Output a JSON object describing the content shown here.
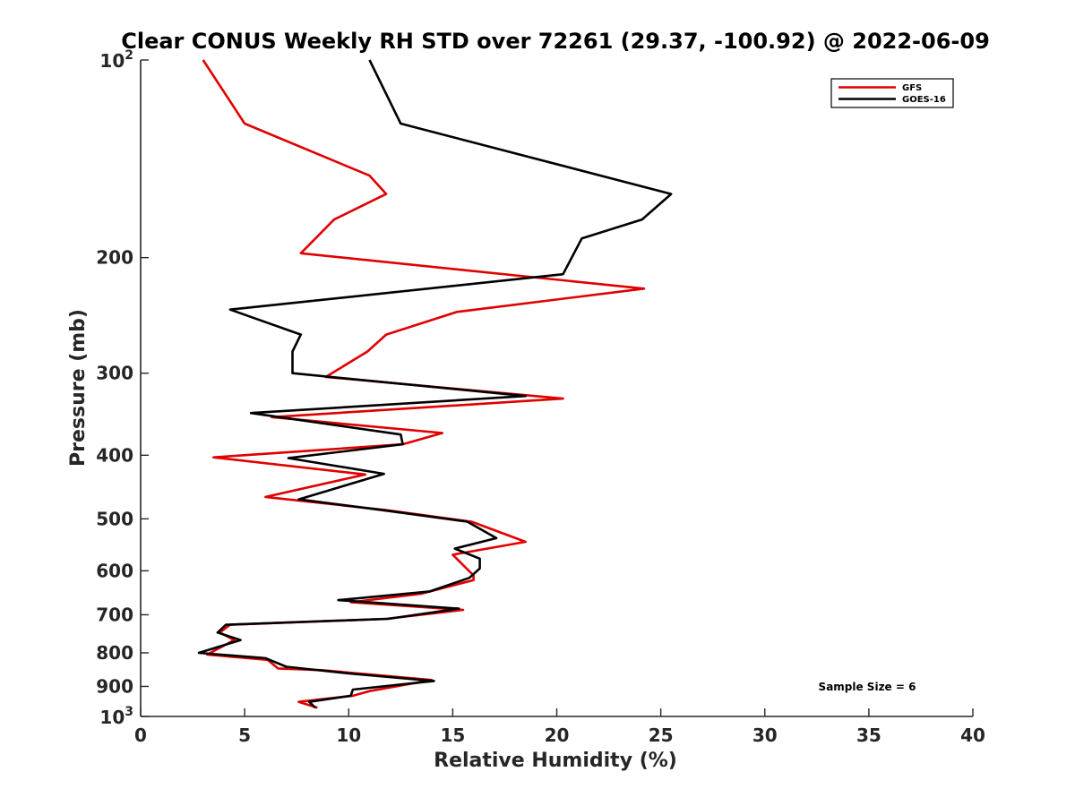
{
  "chart_data": {
    "type": "line",
    "title": "Clear CONUS Weekly RH STD over 72261 (29.37, -100.92) @ 2022-06-09",
    "xlabel": "Relative Humidity (%)",
    "ylabel": "Pressure (mb)",
    "xlim": [
      0,
      40
    ],
    "ylim": [
      100,
      1000
    ],
    "y_scale": "log",
    "y_reversed": true,
    "x_ticks": [
      "0",
      "5",
      "10",
      "15",
      "20",
      "25",
      "30",
      "35",
      "40"
    ],
    "y_ticks": [
      {
        "value": 100,
        "base": "10",
        "exp": "2"
      },
      {
        "value": 200,
        "label": "200"
      },
      {
        "value": 300,
        "label": "300"
      },
      {
        "value": 400,
        "label": "400"
      },
      {
        "value": 500,
        "label": "500"
      },
      {
        "value": 600,
        "label": "600"
      },
      {
        "value": 700,
        "label": "700"
      },
      {
        "value": 800,
        "label": "800"
      },
      {
        "value": 900,
        "label": "900"
      },
      {
        "value": 1000,
        "base": "10",
        "exp": "3"
      }
    ],
    "grid": false,
    "legend_position": "top-right",
    "annotation": "Sample Size = 6",
    "series": [
      {
        "name": "GFS",
        "color": "#e00000",
        "points": [
          [
            3.0,
            100
          ],
          [
            5.0,
            125
          ],
          [
            11.0,
            150
          ],
          [
            11.8,
            160
          ],
          [
            9.3,
            175
          ],
          [
            7.7,
            197
          ],
          [
            24.2,
            223
          ],
          [
            15.2,
            242
          ],
          [
            11.8,
            262
          ],
          [
            10.9,
            278
          ],
          [
            8.9,
            304
          ],
          [
            20.3,
            328
          ],
          [
            6.3,
            350
          ],
          [
            14.5,
            370
          ],
          [
            12.6,
            385
          ],
          [
            3.5,
            403
          ],
          [
            10.8,
            428
          ],
          [
            6.0,
            463
          ],
          [
            11.8,
            485
          ],
          [
            15.9,
            505
          ],
          [
            18.5,
            542
          ],
          [
            15.0,
            567
          ],
          [
            16.0,
            610
          ],
          [
            16.0,
            620
          ],
          [
            13.5,
            650
          ],
          [
            10.1,
            670
          ],
          [
            15.5,
            688
          ],
          [
            11.8,
            710
          ],
          [
            4.3,
            725
          ],
          [
            3.8,
            745
          ],
          [
            4.5,
            765
          ],
          [
            3.2,
            805
          ],
          [
            6.1,
            820
          ],
          [
            6.6,
            845
          ],
          [
            8.7,
            850
          ],
          [
            14.0,
            880
          ],
          [
            11.0,
            915
          ],
          [
            10.2,
            930
          ],
          [
            7.6,
            950
          ],
          [
            8.5,
            970
          ]
        ]
      },
      {
        "name": "GOES-16",
        "color": "#000000",
        "points": [
          [
            11.0,
            100
          ],
          [
            12.5,
            125
          ],
          [
            25.5,
            160
          ],
          [
            24.1,
            175
          ],
          [
            21.2,
            187
          ],
          [
            20.3,
            212
          ],
          [
            4.3,
            240
          ],
          [
            7.7,
            262
          ],
          [
            7.3,
            278
          ],
          [
            7.3,
            300
          ],
          [
            18.5,
            325
          ],
          [
            5.3,
            345
          ],
          [
            12.5,
            372
          ],
          [
            12.6,
            385
          ],
          [
            7.1,
            404
          ],
          [
            11.7,
            427
          ],
          [
            7.6,
            467
          ],
          [
            11.6,
            485
          ],
          [
            15.7,
            505
          ],
          [
            17.1,
            535
          ],
          [
            15.1,
            555
          ],
          [
            16.3,
            575
          ],
          [
            16.3,
            595
          ],
          [
            15.8,
            615
          ],
          [
            13.9,
            645
          ],
          [
            9.5,
            665
          ],
          [
            15.3,
            685
          ],
          [
            11.9,
            710
          ],
          [
            4.1,
            725
          ],
          [
            3.7,
            745
          ],
          [
            4.8,
            765
          ],
          [
            2.8,
            800
          ],
          [
            6.0,
            815
          ],
          [
            7.0,
            840
          ],
          [
            10.0,
            860
          ],
          [
            14.1,
            883
          ],
          [
            10.2,
            910
          ],
          [
            10.1,
            930
          ],
          [
            8.1,
            950
          ],
          [
            8.4,
            970
          ]
        ]
      }
    ]
  }
}
